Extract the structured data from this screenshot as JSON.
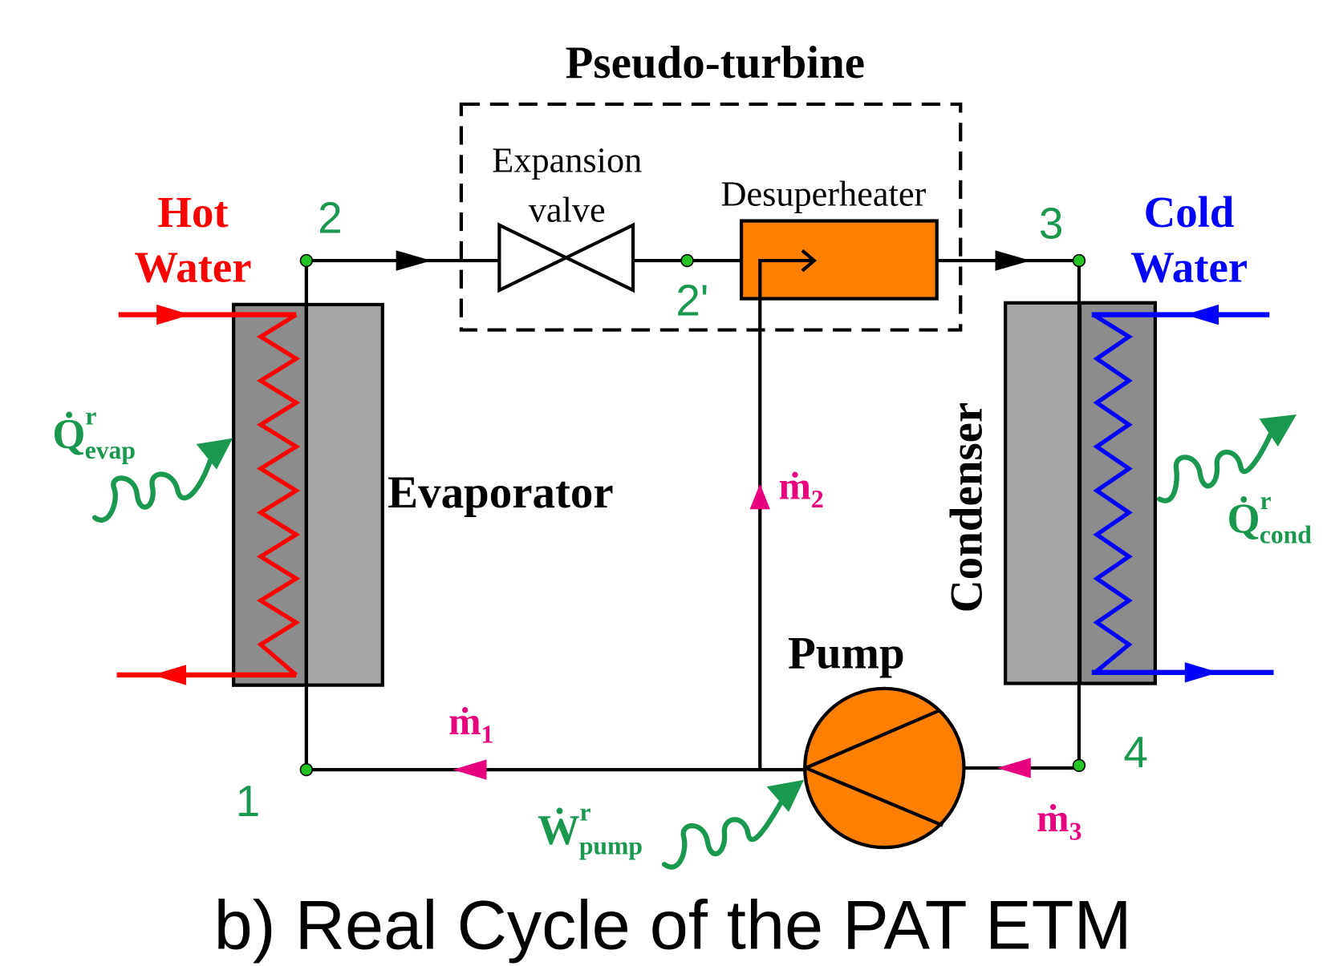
{
  "title": "Pseudo-turbine",
  "components": {
    "expansion_valve": [
      "Expansion",
      "valve"
    ],
    "desuperheater": "Desuperheater",
    "evaporator": "Evaporator",
    "condenser": "Condenser",
    "pump": "Pump"
  },
  "hot_water": [
    "Hot",
    "Water"
  ],
  "cold_water": [
    "Cold",
    "Water"
  ],
  "nodes": [
    "1",
    "2",
    "2'",
    "3",
    "4"
  ],
  "mass_flows": [
    {
      "symbol": "ṁ",
      "sub": "1"
    },
    {
      "symbol": "ṁ",
      "sub": "2"
    },
    {
      "symbol": "ṁ",
      "sub": "3"
    }
  ],
  "energy": [
    {
      "symbol": "Q̇",
      "sup": "r",
      "sub": "evap"
    },
    {
      "symbol": "Q̇",
      "sup": "r",
      "sub": "cond"
    },
    {
      "symbol": "Ẇ",
      "sup": "r",
      "sub": "pump"
    }
  ],
  "caption": "b) Real Cycle of the PAT ETM"
}
